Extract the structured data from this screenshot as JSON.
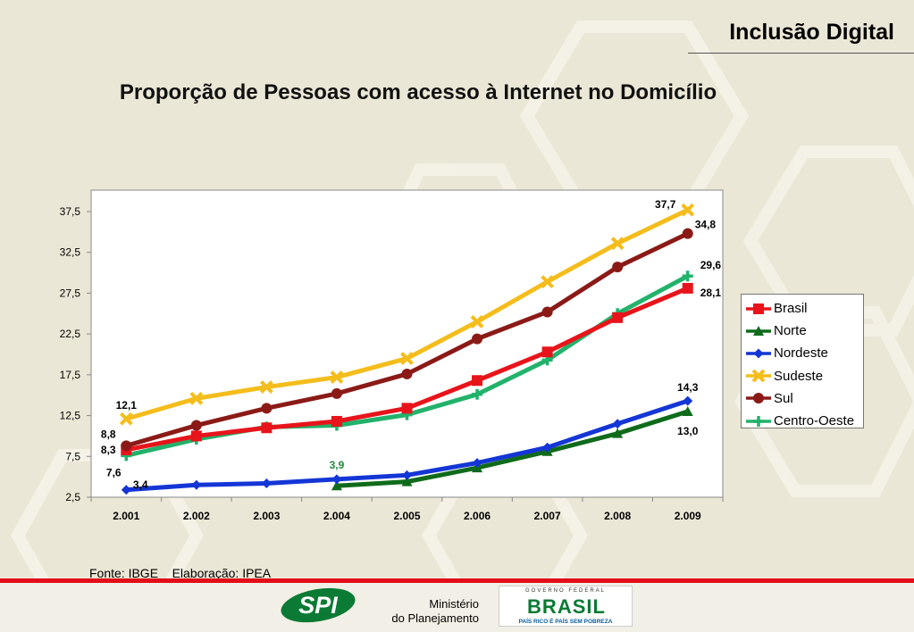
{
  "header": {
    "title": "Inclusão Digital"
  },
  "chart_data": {
    "type": "line",
    "title": "Proporção de Pessoas com acesso à Internet no Domicílio",
    "categories": [
      "2.001",
      "2.002",
      "2.003",
      "2.004",
      "2.005",
      "2.006",
      "2.007",
      "2.008",
      "2.009"
    ],
    "y_tick_labels": [
      "2,5",
      "7,5",
      "12,5",
      "17,5",
      "22,5",
      "27,5",
      "32,5",
      "37,5"
    ],
    "ylim": [
      2.5,
      40.5
    ],
    "grid": false,
    "legend_position": "right",
    "series": [
      {
        "name": "Brasil",
        "color": "#e8141b",
        "marker": "square",
        "values": [
          8.3,
          10.0,
          11.0,
          11.8,
          13.4,
          16.8,
          20.3,
          24.5,
          28.1
        ]
      },
      {
        "name": "Norte",
        "color": "#0f6b1b",
        "marker": "triangle",
        "values": [
          null,
          null,
          null,
          3.9,
          4.4,
          6.1,
          8.1,
          10.3,
          13.0
        ]
      },
      {
        "name": "Nordeste",
        "color": "#1436d6",
        "marker": "diamond",
        "values": [
          3.4,
          4.0,
          4.2,
          4.7,
          5.2,
          6.7,
          8.6,
          11.5,
          14.3
        ]
      },
      {
        "name": "Sudeste",
        "color": "#f4bd1c",
        "marker": "x",
        "values": [
          12.1,
          14.6,
          16.0,
          17.2,
          19.5,
          24.0,
          28.9,
          33.6,
          37.7
        ]
      },
      {
        "name": "Sul",
        "color": "#8b1a17",
        "marker": "circle",
        "values": [
          8.8,
          11.3,
          13.4,
          15.2,
          17.6,
          21.9,
          25.2,
          30.7,
          34.8
        ]
      },
      {
        "name": "Centro-Oeste",
        "color": "#22b26b",
        "marker": "plus",
        "values": [
          7.6,
          9.6,
          11.1,
          11.3,
          12.6,
          15.1,
          19.3,
          25.0,
          29.6
        ]
      }
    ],
    "data_labels": [
      {
        "text": "12,1",
        "series": "Sudeste",
        "index": 0,
        "color": "#000"
      },
      {
        "text": "8,8",
        "series": "Sul",
        "index": 0,
        "color": "#000"
      },
      {
        "text": "8,3",
        "series": "Brasil",
        "index": 0,
        "color": "#000"
      },
      {
        "text": "7,6",
        "series": "Centro-Oeste",
        "index": 0,
        "color": "#000"
      },
      {
        "text": "3,4",
        "series": "Nordeste",
        "index": 0,
        "color": "#000"
      },
      {
        "text": "3,9",
        "series": "Norte",
        "index": 3,
        "color": "#1f8a3a"
      },
      {
        "text": "37,7",
        "series": "Sudeste",
        "index": 8,
        "color": "#000"
      },
      {
        "text": "34,8",
        "series": "Sul",
        "index": 8,
        "color": "#000"
      },
      {
        "text": "29,6",
        "series": "Centro-Oeste",
        "index": 8,
        "color": "#000"
      },
      {
        "text": "28,1",
        "series": "Brasil",
        "index": 8,
        "color": "#000"
      },
      {
        "text": "14,3",
        "series": "Nordeste",
        "index": 8,
        "color": "#000"
      },
      {
        "text": "13,0",
        "series": "Norte",
        "index": 8,
        "color": "#000"
      }
    ]
  },
  "source_note": "Fonte: IBGE    Elaboração: IPEA",
  "footer": {
    "spi_logo_text": "SPI",
    "ministry_line1": "Ministério",
    "ministry_line2": "do Planejamento",
    "gov_federal_text": "GOVERNO FEDERAL",
    "brasil_text": "BRASIL",
    "brasil_slogan": "PAÍS RICO É PAÍS SEM POBREZA",
    "brand_green": "#0b7a34",
    "brand_red": "#e20d18"
  }
}
